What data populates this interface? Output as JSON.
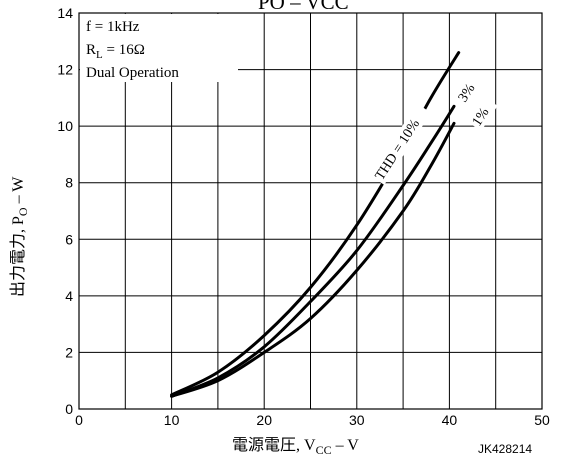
{
  "chart_data": {
    "type": "line",
    "title": "PO – VCC",
    "xlabel": {
      "prefix": "電源電圧, V",
      "sub": "CC",
      "suffix": " – V"
    },
    "ylabel": {
      "prefix": "出力電力, P",
      "sub": "O",
      "suffix": " – W"
    },
    "xlim": [
      0,
      50
    ],
    "ylim": [
      0,
      14
    ],
    "xticks": [
      "0",
      "10",
      "20",
      "30",
      "40",
      "50"
    ],
    "yticks": [
      "0",
      "2",
      "4",
      "6",
      "8",
      "10",
      "12",
      "14"
    ],
    "grid": true,
    "conditions": {
      "line1": "f = 1kHz",
      "line2_prefix": "R",
      "line2_sub": "L",
      "line2_suffix": " = 16Ω",
      "line3": "Dual Operation"
    },
    "figure_code": "JK428214",
    "series": [
      {
        "name": "THD = 10%",
        "x": [
          10,
          15,
          20,
          25,
          30,
          35,
          38,
          41
        ],
        "y": [
          0.5,
          1.3,
          2.6,
          4.3,
          6.5,
          9.2,
          11.0,
          12.6
        ]
      },
      {
        "name": "3%",
        "x": [
          10,
          15,
          20,
          25,
          30,
          35,
          38,
          40.5
        ],
        "y": [
          0.45,
          1.1,
          2.2,
          3.8,
          5.6,
          7.9,
          9.4,
          10.7
        ]
      },
      {
        "name": "1%",
        "x": [
          10,
          15,
          20,
          25,
          30,
          35,
          38,
          40.5
        ],
        "y": [
          0.45,
          1.0,
          2.0,
          3.2,
          4.9,
          7.0,
          8.6,
          10.1
        ]
      }
    ]
  }
}
